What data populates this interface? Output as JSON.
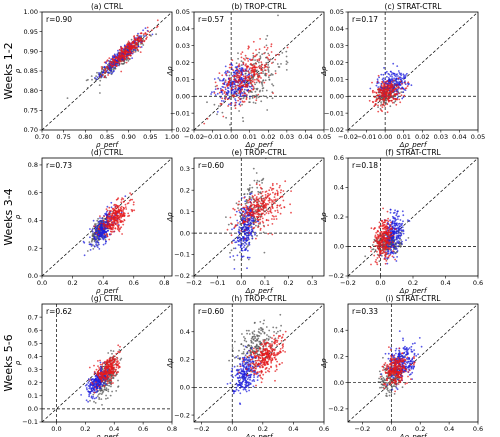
{
  "row_labels": [
    "Weeks 1-2",
    "Weeks 3-4",
    "Weeks 5-6"
  ],
  "colors": {
    "red": "#e41a1c",
    "blue": "#1f1fdd",
    "gray": "#555555"
  },
  "chart_data": [
    {
      "type": "scatter",
      "title": "(a) CTRL",
      "xlabel": "ρ_perf",
      "ylabel": "ρ",
      "r_label": "r=0.90",
      "xlim": [
        0.7,
        1.0
      ],
      "ylim": [
        0.7,
        1.0
      ],
      "xticks": [
        "0.70",
        "0.75",
        "0.80",
        "0.85",
        "0.90",
        "0.95",
        "1.00"
      ],
      "yticks": [
        "0.70",
        "0.75",
        "0.80",
        "0.85",
        "0.90",
        "0.95",
        "1.00"
      ],
      "xtick_values": [
        0.7,
        0.75,
        0.8,
        0.85,
        0.9,
        0.95,
        1.0
      ],
      "ytick_values": [
        0.7,
        0.75,
        0.8,
        0.85,
        0.9,
        0.95,
        1.0
      ],
      "zero_lines": false,
      "clusters": [
        {
          "color": "gray",
          "cx": 0.88,
          "cy": 0.88,
          "sx": 0.03,
          "sy": 0.028,
          "rho": 0.92,
          "n": 260
        },
        {
          "color": "blue",
          "cx": 0.885,
          "cy": 0.89,
          "sx": 0.025,
          "sy": 0.025,
          "rho": 0.92,
          "n": 240
        },
        {
          "color": "red",
          "cx": 0.895,
          "cy": 0.9,
          "sx": 0.024,
          "sy": 0.024,
          "rho": 0.9,
          "n": 260
        }
      ]
    },
    {
      "type": "scatter",
      "title": "(b) TROP-CTRL",
      "xlabel": "Δρ_perf",
      "ylabel": "Δρ",
      "r_label": "r=0.57",
      "xlim": [
        -0.02,
        0.05
      ],
      "ylim": [
        -0.02,
        0.05
      ],
      "xticks": [
        "−0.02",
        "−0.01",
        "0.00",
        "0.01",
        "0.02",
        "0.03",
        "0.04",
        "0.05"
      ],
      "yticks": [
        "−0.02",
        "−0.01",
        "0.00",
        "0.01",
        "0.02",
        "0.03",
        "0.04",
        "0.05"
      ],
      "xtick_values": [
        -0.02,
        -0.01,
        0,
        0.01,
        0.02,
        0.03,
        0.04,
        0.05
      ],
      "ytick_values": [
        -0.02,
        -0.01,
        0,
        0.01,
        0.02,
        0.03,
        0.04,
        0.05
      ],
      "zero_lines": true,
      "clusters": [
        {
          "color": "gray",
          "cx": 0.012,
          "cy": 0.01,
          "sx": 0.008,
          "sy": 0.01,
          "rho": 0.5,
          "n": 220
        },
        {
          "color": "blue",
          "cx": 0.003,
          "cy": 0.008,
          "sx": 0.005,
          "sy": 0.006,
          "rho": 0.3,
          "n": 240
        },
        {
          "color": "red",
          "cx": 0.008,
          "cy": 0.012,
          "sx": 0.007,
          "sy": 0.008,
          "rho": 0.55,
          "n": 300
        }
      ]
    },
    {
      "type": "scatter",
      "title": "(c) STRAT-CTRL",
      "xlabel": "Δρ_perf",
      "ylabel": "Δρ",
      "r_label": "r=0.17",
      "xlim": [
        -0.02,
        0.05
      ],
      "ylim": [
        -0.02,
        0.05
      ],
      "xticks": [
        "−0.02",
        "−0.01",
        "0.00",
        "0.01",
        "0.02",
        "0.03",
        "0.04",
        "0.05"
      ],
      "yticks": [
        "−0.02",
        "−0.01",
        "0.00",
        "0.01",
        "0.02",
        "0.03",
        "0.04",
        "0.05"
      ],
      "xtick_values": [
        -0.02,
        -0.01,
        0,
        0.01,
        0.02,
        0.03,
        0.04,
        0.05
      ],
      "ytick_values": [
        -0.02,
        -0.01,
        0,
        0.01,
        0.02,
        0.03,
        0.04,
        0.05
      ],
      "zero_lines": true,
      "clusters": [
        {
          "color": "gray",
          "cx": 0.001,
          "cy": 0.001,
          "sx": 0.003,
          "sy": 0.003,
          "rho": 0.2,
          "n": 150
        },
        {
          "color": "blue",
          "cx": 0.004,
          "cy": 0.008,
          "sx": 0.004,
          "sy": 0.004,
          "rho": 0.2,
          "n": 220
        },
        {
          "color": "red",
          "cx": 0.001,
          "cy": 0.002,
          "sx": 0.004,
          "sy": 0.004,
          "rho": 0.15,
          "n": 220
        }
      ]
    },
    {
      "type": "scatter",
      "title": "(d) CTRL",
      "xlabel": "ρ_perf",
      "ylabel": "ρ",
      "r_label": "r=0.73",
      "xlim": [
        0.0,
        0.85
      ],
      "ylim": [
        0.0,
        0.85
      ],
      "xticks": [
        "0.0",
        "0.2",
        "0.4",
        "0.6",
        "0.8"
      ],
      "yticks": [
        "0.0",
        "0.2",
        "0.4",
        "0.6",
        "0.8"
      ],
      "xtick_values": [
        0,
        0.2,
        0.4,
        0.6,
        0.8
      ],
      "ytick_values": [
        0,
        0.2,
        0.4,
        0.6,
        0.8
      ],
      "zero_lines": false,
      "clusters": [
        {
          "color": "gray",
          "cx": 0.38,
          "cy": 0.33,
          "sx": 0.03,
          "sy": 0.05,
          "rho": 0.6,
          "n": 180
        },
        {
          "color": "blue",
          "cx": 0.4,
          "cy": 0.34,
          "sx": 0.04,
          "sy": 0.06,
          "rho": 0.6,
          "n": 260
        },
        {
          "color": "red",
          "cx": 0.48,
          "cy": 0.42,
          "sx": 0.05,
          "sy": 0.06,
          "rho": 0.6,
          "n": 280
        }
      ]
    },
    {
      "type": "scatter",
      "title": "(e) TROP-CTRL",
      "xlabel": "Δρ_perf",
      "ylabel": "Δρ",
      "r_label": "r=0.60",
      "xlim": [
        -0.2,
        0.35
      ],
      "ylim": [
        -0.2,
        0.35
      ],
      "xticks": [
        "−0.2",
        "−0.1",
        "0.0",
        "0.1",
        "0.2",
        "0.3"
      ],
      "yticks": [
        "−0.2",
        "−0.1",
        "0.0",
        "0.1",
        "0.2",
        "0.3"
      ],
      "xtick_values": [
        -0.2,
        -0.1,
        0,
        0.1,
        0.2,
        0.3
      ],
      "ytick_values": [
        -0.2,
        -0.1,
        0,
        0.1,
        0.2,
        0.3
      ],
      "zero_lines": true,
      "clusters": [
        {
          "color": "gray",
          "cx": 0.04,
          "cy": 0.08,
          "sx": 0.035,
          "sy": 0.08,
          "rho": 0.5,
          "n": 200
        },
        {
          "color": "blue",
          "cx": 0.02,
          "cy": 0.02,
          "sx": 0.02,
          "sy": 0.06,
          "rho": 0.4,
          "n": 240
        },
        {
          "color": "red",
          "cx": 0.08,
          "cy": 0.12,
          "sx": 0.05,
          "sy": 0.05,
          "rho": 0.5,
          "n": 300
        }
      ]
    },
    {
      "type": "scatter",
      "title": "(f) STRAT-CTRL",
      "xlabel": "Δρ_perf",
      "ylabel": "Δρ",
      "r_label": "r=0.18",
      "xlim": [
        -0.2,
        0.6
      ],
      "ylim": [
        -0.2,
        0.6
      ],
      "xticks": [
        "−0.2",
        "0.0",
        "0.2",
        "0.4",
        "0.6"
      ],
      "yticks": [
        "−0.2",
        "0.0",
        "0.2",
        "0.4",
        "0.6"
      ],
      "xtick_values": [
        -0.2,
        0,
        0.2,
        0.4,
        0.6
      ],
      "ytick_values": [
        -0.2,
        0,
        0.2,
        0.4,
        0.6
      ],
      "zero_lines": true,
      "clusters": [
        {
          "color": "gray",
          "cx": 0.05,
          "cy": 0.02,
          "sx": 0.04,
          "sy": 0.04,
          "rho": 0.2,
          "n": 200
        },
        {
          "color": "blue",
          "cx": 0.08,
          "cy": 0.08,
          "sx": 0.03,
          "sy": 0.07,
          "rho": 0.3,
          "n": 260
        },
        {
          "color": "red",
          "cx": 0.02,
          "cy": 0.05,
          "sx": 0.03,
          "sy": 0.07,
          "rho": 0.2,
          "n": 260
        }
      ]
    },
    {
      "type": "scatter",
      "title": "(g) CTRL",
      "xlabel": "ρ_perf",
      "ylabel": "ρ",
      "r_label": "r=0.62",
      "xlim": [
        -0.1,
        0.8
      ],
      "ylim": [
        -0.1,
        0.8
      ],
      "xticks": [
        "0.0",
        "0.2",
        "0.4",
        "0.6",
        "0.8"
      ],
      "yticks": [
        "−0.1",
        "0.0",
        "0.1",
        "0.2",
        "0.3",
        "0.4",
        "0.5",
        "0.6",
        "0.7"
      ],
      "xtick_values": [
        0,
        0.2,
        0.4,
        0.6,
        0.8
      ],
      "ytick_values": [
        -0.1,
        0,
        0.1,
        0.2,
        0.3,
        0.4,
        0.5,
        0.6,
        0.7
      ],
      "zero_lines": true,
      "clusters": [
        {
          "color": "gray",
          "cx": 0.35,
          "cy": 0.25,
          "sx": 0.04,
          "sy": 0.08,
          "rho": 0.6,
          "n": 220
        },
        {
          "color": "blue",
          "cx": 0.28,
          "cy": 0.2,
          "sx": 0.035,
          "sy": 0.05,
          "rho": 0.6,
          "n": 240
        },
        {
          "color": "red",
          "cx": 0.36,
          "cy": 0.3,
          "sx": 0.04,
          "sy": 0.06,
          "rho": 0.5,
          "n": 260
        }
      ]
    },
    {
      "type": "scatter",
      "title": "(h) TROP-CTRL",
      "xlabel": "Δρ_perf",
      "ylabel": "Δρ",
      "r_label": "r=0.60",
      "xlim": [
        -0.25,
        0.6
      ],
      "ylim": [
        -0.25,
        0.6
      ],
      "xticks": [
        "−0.2",
        "0.0",
        "0.2",
        "0.4",
        "0.6"
      ],
      "yticks": [
        "−0.2",
        "0.0",
        "0.2",
        "0.4"
      ],
      "xtick_values": [
        -0.2,
        0,
        0.2,
        0.4,
        0.6
      ],
      "ytick_values": [
        -0.2,
        0,
        0.2,
        0.4
      ],
      "zero_lines": true,
      "clusters": [
        {
          "color": "gray",
          "cx": 0.15,
          "cy": 0.3,
          "sx": 0.06,
          "sy": 0.08,
          "rho": 0.4,
          "n": 200
        },
        {
          "color": "blue",
          "cx": 0.08,
          "cy": 0.1,
          "sx": 0.04,
          "sy": 0.07,
          "rho": 0.4,
          "n": 240
        },
        {
          "color": "red",
          "cx": 0.22,
          "cy": 0.22,
          "sx": 0.06,
          "sy": 0.07,
          "rho": 0.5,
          "n": 300
        }
      ]
    },
    {
      "type": "scatter",
      "title": "(i) STRAT-CTRL",
      "xlabel": "Δρ_perf",
      "ylabel": "Δρ",
      "r_label": "r=0.33",
      "xlim": [
        -0.3,
        0.6
      ],
      "ylim": [
        -0.3,
        0.6
      ],
      "xticks": [
        "−0.2",
        "0.0",
        "0.2",
        "0.4",
        "0.6"
      ],
      "yticks": [
        "−0.2",
        "0.0",
        "0.2",
        "0.4"
      ],
      "xtick_values": [
        -0.2,
        0,
        0.2,
        0.4,
        0.6
      ],
      "ytick_values": [
        -0.2,
        0,
        0.2,
        0.4
      ],
      "zero_lines": true,
      "clusters": [
        {
          "color": "gray",
          "cx": 0.0,
          "cy": 0.05,
          "sx": 0.04,
          "sy": 0.07,
          "rho": 0.3,
          "n": 180
        },
        {
          "color": "blue",
          "cx": 0.08,
          "cy": 0.15,
          "sx": 0.05,
          "sy": 0.07,
          "rho": 0.3,
          "n": 260
        },
        {
          "color": "red",
          "cx": 0.03,
          "cy": 0.1,
          "sx": 0.04,
          "sy": 0.06,
          "rho": 0.3,
          "n": 260
        }
      ]
    }
  ]
}
